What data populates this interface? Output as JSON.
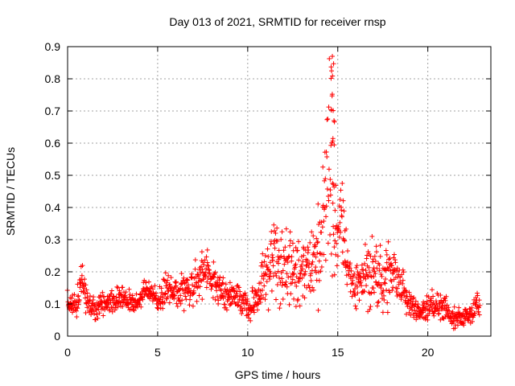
{
  "chart_data": {
    "type": "scatter",
    "title": "Day 013 of 2021, SRMTID for receiver rnsp",
    "xlabel": "GPS time / hours",
    "ylabel": "SRMTID / TECUs",
    "xlim": [
      0,
      23.5
    ],
    "ylim": [
      0,
      0.9
    ],
    "xticks": [
      0,
      5,
      10,
      15,
      20
    ],
    "yticks": [
      0,
      0.1,
      0.2,
      0.3,
      0.4,
      0.5,
      0.6,
      0.7,
      0.8,
      0.9
    ],
    "xtick_labels": [
      "0",
      "5",
      "10",
      "15",
      "20"
    ],
    "ytick_labels": [
      "0",
      "0.1",
      "0.2",
      "0.3",
      "0.4",
      "0.5",
      "0.6",
      "0.7",
      "0.8",
      "0.9"
    ],
    "grid": true,
    "marker": "+",
    "color": "#ff0000",
    "series": [
      {
        "name": "SRMTID",
        "envelope_x": [
          0,
          0.5,
          0.8,
          1.0,
          1.5,
          2.0,
          2.5,
          3.0,
          3.5,
          4.0,
          4.3,
          4.6,
          5.0,
          5.5,
          6.0,
          6.5,
          7.0,
          7.5,
          8.0,
          8.5,
          9.0,
          9.5,
          10.0,
          10.5,
          11.0,
          11.5,
          12.0,
          12.5,
          13.0,
          13.5,
          14.0,
          14.3,
          14.6,
          14.8,
          15.0,
          15.3,
          15.6,
          16.0,
          16.5,
          17.0,
          17.5,
          18.0,
          18.5,
          19.0,
          19.5,
          20.0,
          20.5,
          21.0,
          21.5,
          22.0,
          22.5,
          22.9
        ],
        "envelope_mean": [
          0.08,
          0.1,
          0.18,
          0.12,
          0.08,
          0.1,
          0.11,
          0.12,
          0.1,
          0.1,
          0.15,
          0.14,
          0.1,
          0.14,
          0.15,
          0.14,
          0.16,
          0.2,
          0.18,
          0.14,
          0.13,
          0.12,
          0.09,
          0.1,
          0.2,
          0.22,
          0.2,
          0.22,
          0.2,
          0.22,
          0.25,
          0.4,
          0.55,
          0.3,
          0.35,
          0.33,
          0.2,
          0.15,
          0.18,
          0.2,
          0.17,
          0.2,
          0.16,
          0.1,
          0.08,
          0.1,
          0.1,
          0.08,
          0.05,
          0.06,
          0.08,
          0.1
        ],
        "envelope_spread": [
          0.03,
          0.04,
          0.05,
          0.03,
          0.03,
          0.03,
          0.03,
          0.03,
          0.03,
          0.03,
          0.04,
          0.04,
          0.03,
          0.05,
          0.05,
          0.05,
          0.06,
          0.06,
          0.06,
          0.04,
          0.05,
          0.04,
          0.03,
          0.05,
          0.1,
          0.12,
          0.12,
          0.1,
          0.1,
          0.1,
          0.14,
          0.2,
          0.28,
          0.15,
          0.12,
          0.12,
          0.08,
          0.07,
          0.09,
          0.09,
          0.09,
          0.08,
          0.07,
          0.04,
          0.03,
          0.04,
          0.04,
          0.04,
          0.03,
          0.03,
          0.03,
          0.04
        ],
        "peak_value": 0.87,
        "peak_x": 14.7,
        "n_points": 1400
      }
    ]
  }
}
